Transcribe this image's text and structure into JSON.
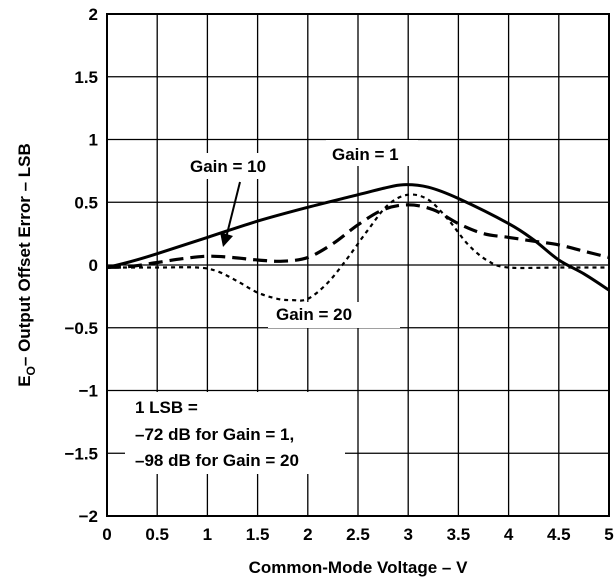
{
  "chart_data": {
    "type": "line",
    "title": "",
    "xlabel": "Common-Mode Voltage – V",
    "ylabel_main": "E",
    "ylabel_sub": "O",
    "ylabel_rest": "– Output Offset Error – LSB",
    "xlim": [
      0,
      5
    ],
    "ylim": [
      -2,
      2
    ],
    "x_ticks": [
      0,
      0.5,
      1,
      1.5,
      2,
      2.5,
      3,
      3.5,
      4,
      4.5,
      5
    ],
    "x_tick_labels": [
      "0",
      "0.5",
      "1",
      "1.5",
      "2",
      "2.5",
      "3",
      "3.5",
      "4",
      "4.5",
      "5"
    ],
    "y_ticks": [
      2,
      1.5,
      1,
      0.5,
      0,
      -0.5,
      -1,
      -1.5,
      -2
    ],
    "y_tick_labels": [
      "2",
      "1.5",
      "1",
      "0.5",
      "0",
      "−0.5",
      "−1",
      "−1.5",
      "−2"
    ],
    "grid": true,
    "series": [
      {
        "name": "Gain = 1",
        "style": "solid",
        "x": [
          0,
          0.25,
          0.5,
          1,
          1.5,
          2,
          2.5,
          2.75,
          2.95,
          3.2,
          3.5,
          4,
          4.25,
          4.5,
          4.75,
          5
        ],
        "y": [
          -0.02,
          0.03,
          0.09,
          0.22,
          0.35,
          0.46,
          0.56,
          0.61,
          0.64,
          0.62,
          0.53,
          0.33,
          0.2,
          0.04,
          -0.07,
          -0.2
        ]
      },
      {
        "name": "Gain = 10",
        "style": "dashed",
        "x": [
          0,
          0.25,
          0.5,
          0.75,
          1,
          1.25,
          1.5,
          1.75,
          2,
          2.25,
          2.5,
          2.75,
          3,
          3.25,
          3.5,
          3.75,
          4,
          4.25,
          4.5,
          4.75,
          5
        ],
        "y": [
          -0.02,
          -0.01,
          0.02,
          0.05,
          0.07,
          0.06,
          0.04,
          0.03,
          0.06,
          0.17,
          0.32,
          0.44,
          0.48,
          0.44,
          0.33,
          0.25,
          0.22,
          0.19,
          0.16,
          0.11,
          0.06
        ]
      },
      {
        "name": "Gain = 20",
        "style": "dotted",
        "x": [
          0,
          0.5,
          0.9,
          1.1,
          1.3,
          1.5,
          1.7,
          1.85,
          2,
          2.2,
          2.4,
          2.6,
          2.8,
          3,
          3.2,
          3.4,
          3.6,
          3.8,
          4,
          4.5,
          5
        ],
        "y": [
          -0.02,
          -0.02,
          -0.02,
          -0.05,
          -0.13,
          -0.22,
          -0.27,
          -0.28,
          -0.27,
          -0.14,
          0.06,
          0.28,
          0.48,
          0.56,
          0.52,
          0.36,
          0.16,
          0.03,
          -0.02,
          -0.02,
          -0.02
        ]
      }
    ],
    "annotations": {
      "gain1": "Gain = 1",
      "gain10": "Gain = 10",
      "gain20": "Gain = 20",
      "lsb_line1": "1 LSB =",
      "lsb_line2": "–72 dB for Gain = 1,",
      "lsb_line3": "–98 dB for Gain = 20"
    }
  }
}
